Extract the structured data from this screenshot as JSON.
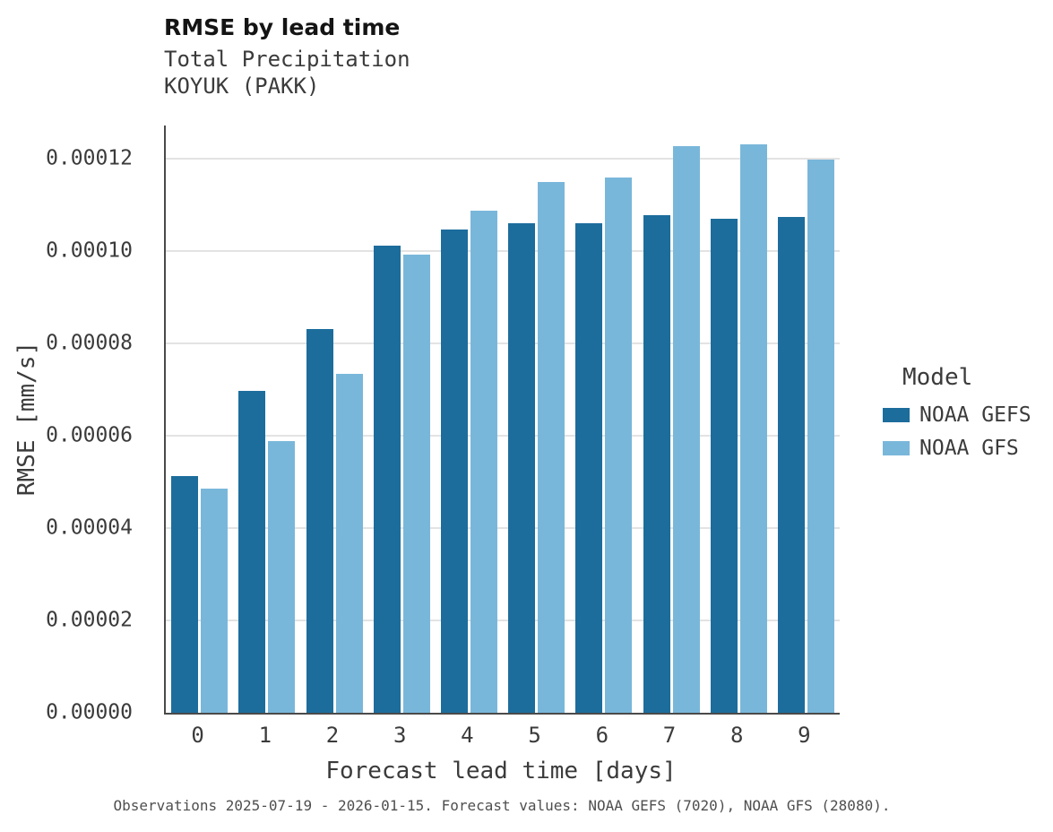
{
  "header": {
    "title": "RMSE by lead time",
    "subtitle_line1": "Total Precipitation",
    "subtitle_line2": "KOYUK (PAKK)"
  },
  "legend": {
    "title": "Model",
    "items": [
      {
        "label": "NOAA GEFS",
        "color": "#1c6d9c"
      },
      {
        "label": "NOAA GFS",
        "color": "#79b7da"
      }
    ]
  },
  "caption": "Observations 2025-07-19 - 2026-01-15. Forecast values: NOAA GEFS (7020), NOAA GFS (28080).",
  "chart_data": {
    "type": "bar",
    "title": "RMSE by lead time",
    "subtitle": [
      "Total Precipitation",
      "KOYUK (PAKK)"
    ],
    "xlabel": "Forecast lead time [days]",
    "ylabel": "RMSE [mm/s]",
    "categories": [
      "0",
      "1",
      "2",
      "3",
      "4",
      "5",
      "6",
      "7",
      "8",
      "9"
    ],
    "series": [
      {
        "name": "NOAA GEFS",
        "color": "#1c6d9c",
        "values": [
          5.12e-05,
          6.98e-05,
          8.32e-05,
          0.0001011,
          0.0001047,
          0.0001061,
          0.0001061,
          0.0001077,
          0.0001071,
          0.0001073
        ]
      },
      {
        "name": "NOAA GFS",
        "color": "#79b7da",
        "values": [
          4.85e-05,
          5.89e-05,
          7.34e-05,
          9.93e-05,
          0.0001088,
          0.000115,
          0.000116,
          0.0001227,
          0.0001231,
          0.0001199
        ]
      }
    ],
    "ylim": [
      0,
      0.0001272
    ],
    "yticks": [
      0,
      2e-05,
      4e-05,
      6e-05,
      8e-05,
      0.0001,
      0.00012
    ],
    "ytick_labels": [
      "0.00000",
      "0.00002",
      "0.00004",
      "0.00006",
      "0.00008",
      "0.00010",
      "0.00012"
    ],
    "grid": true,
    "legend_position": "right",
    "bar_mode": "grouped"
  }
}
